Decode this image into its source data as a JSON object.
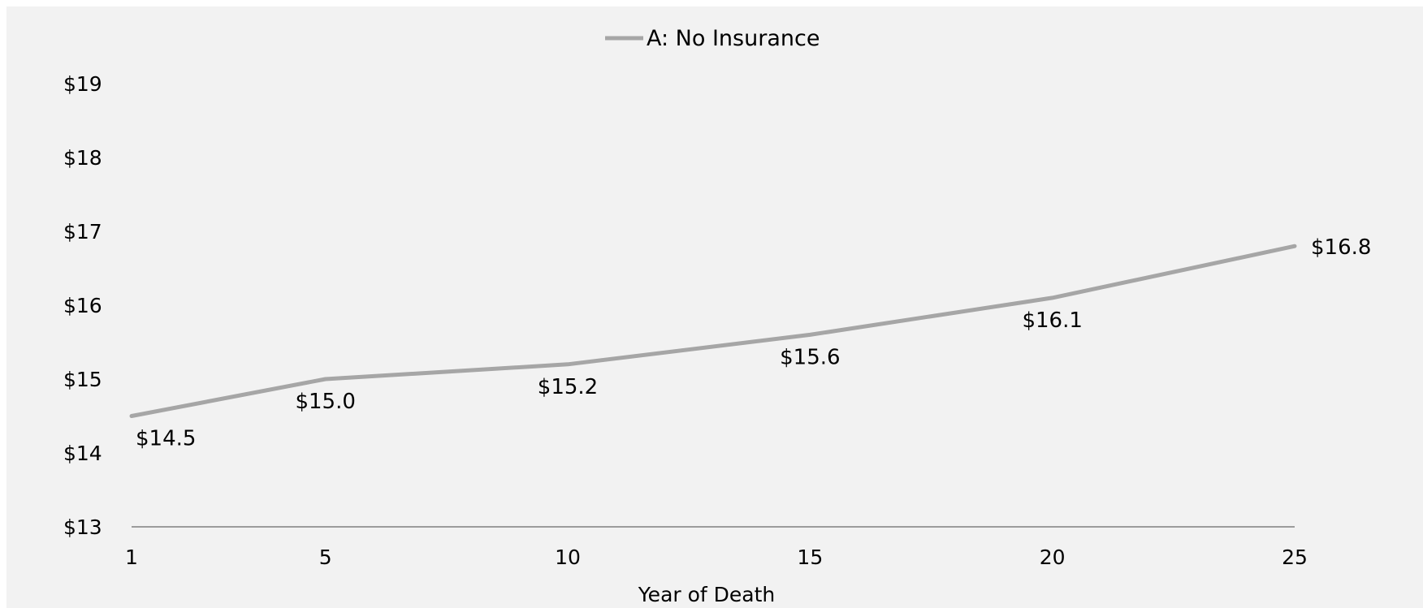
{
  "chart_data": {
    "type": "line",
    "title": "",
    "xlabel": "Year of Death",
    "ylabel": "",
    "categories": [
      "1",
      "5",
      "10",
      "15",
      "20",
      "25"
    ],
    "x": [
      1,
      5,
      10,
      15,
      20,
      25
    ],
    "series": [
      {
        "name": "A: No Insurance",
        "values": [
          14.5,
          15.0,
          15.2,
          15.6,
          16.1,
          16.8
        ],
        "labels": [
          "$14.5",
          "$15.0",
          "$15.2",
          "$15.6",
          "$16.1",
          "$16.8"
        ],
        "color": "#a6a6a6"
      }
    ],
    "ylim": [
      13,
      19
    ],
    "y_ticks": [
      13,
      14,
      15,
      16,
      17,
      18,
      19
    ],
    "y_tick_labels": [
      "$13",
      "$14",
      "$15",
      "$16",
      "$17",
      "$18",
      "$19"
    ],
    "grid": false,
    "legend": "top-center",
    "background": "#f2f2f2",
    "axis_color": "#808080"
  }
}
